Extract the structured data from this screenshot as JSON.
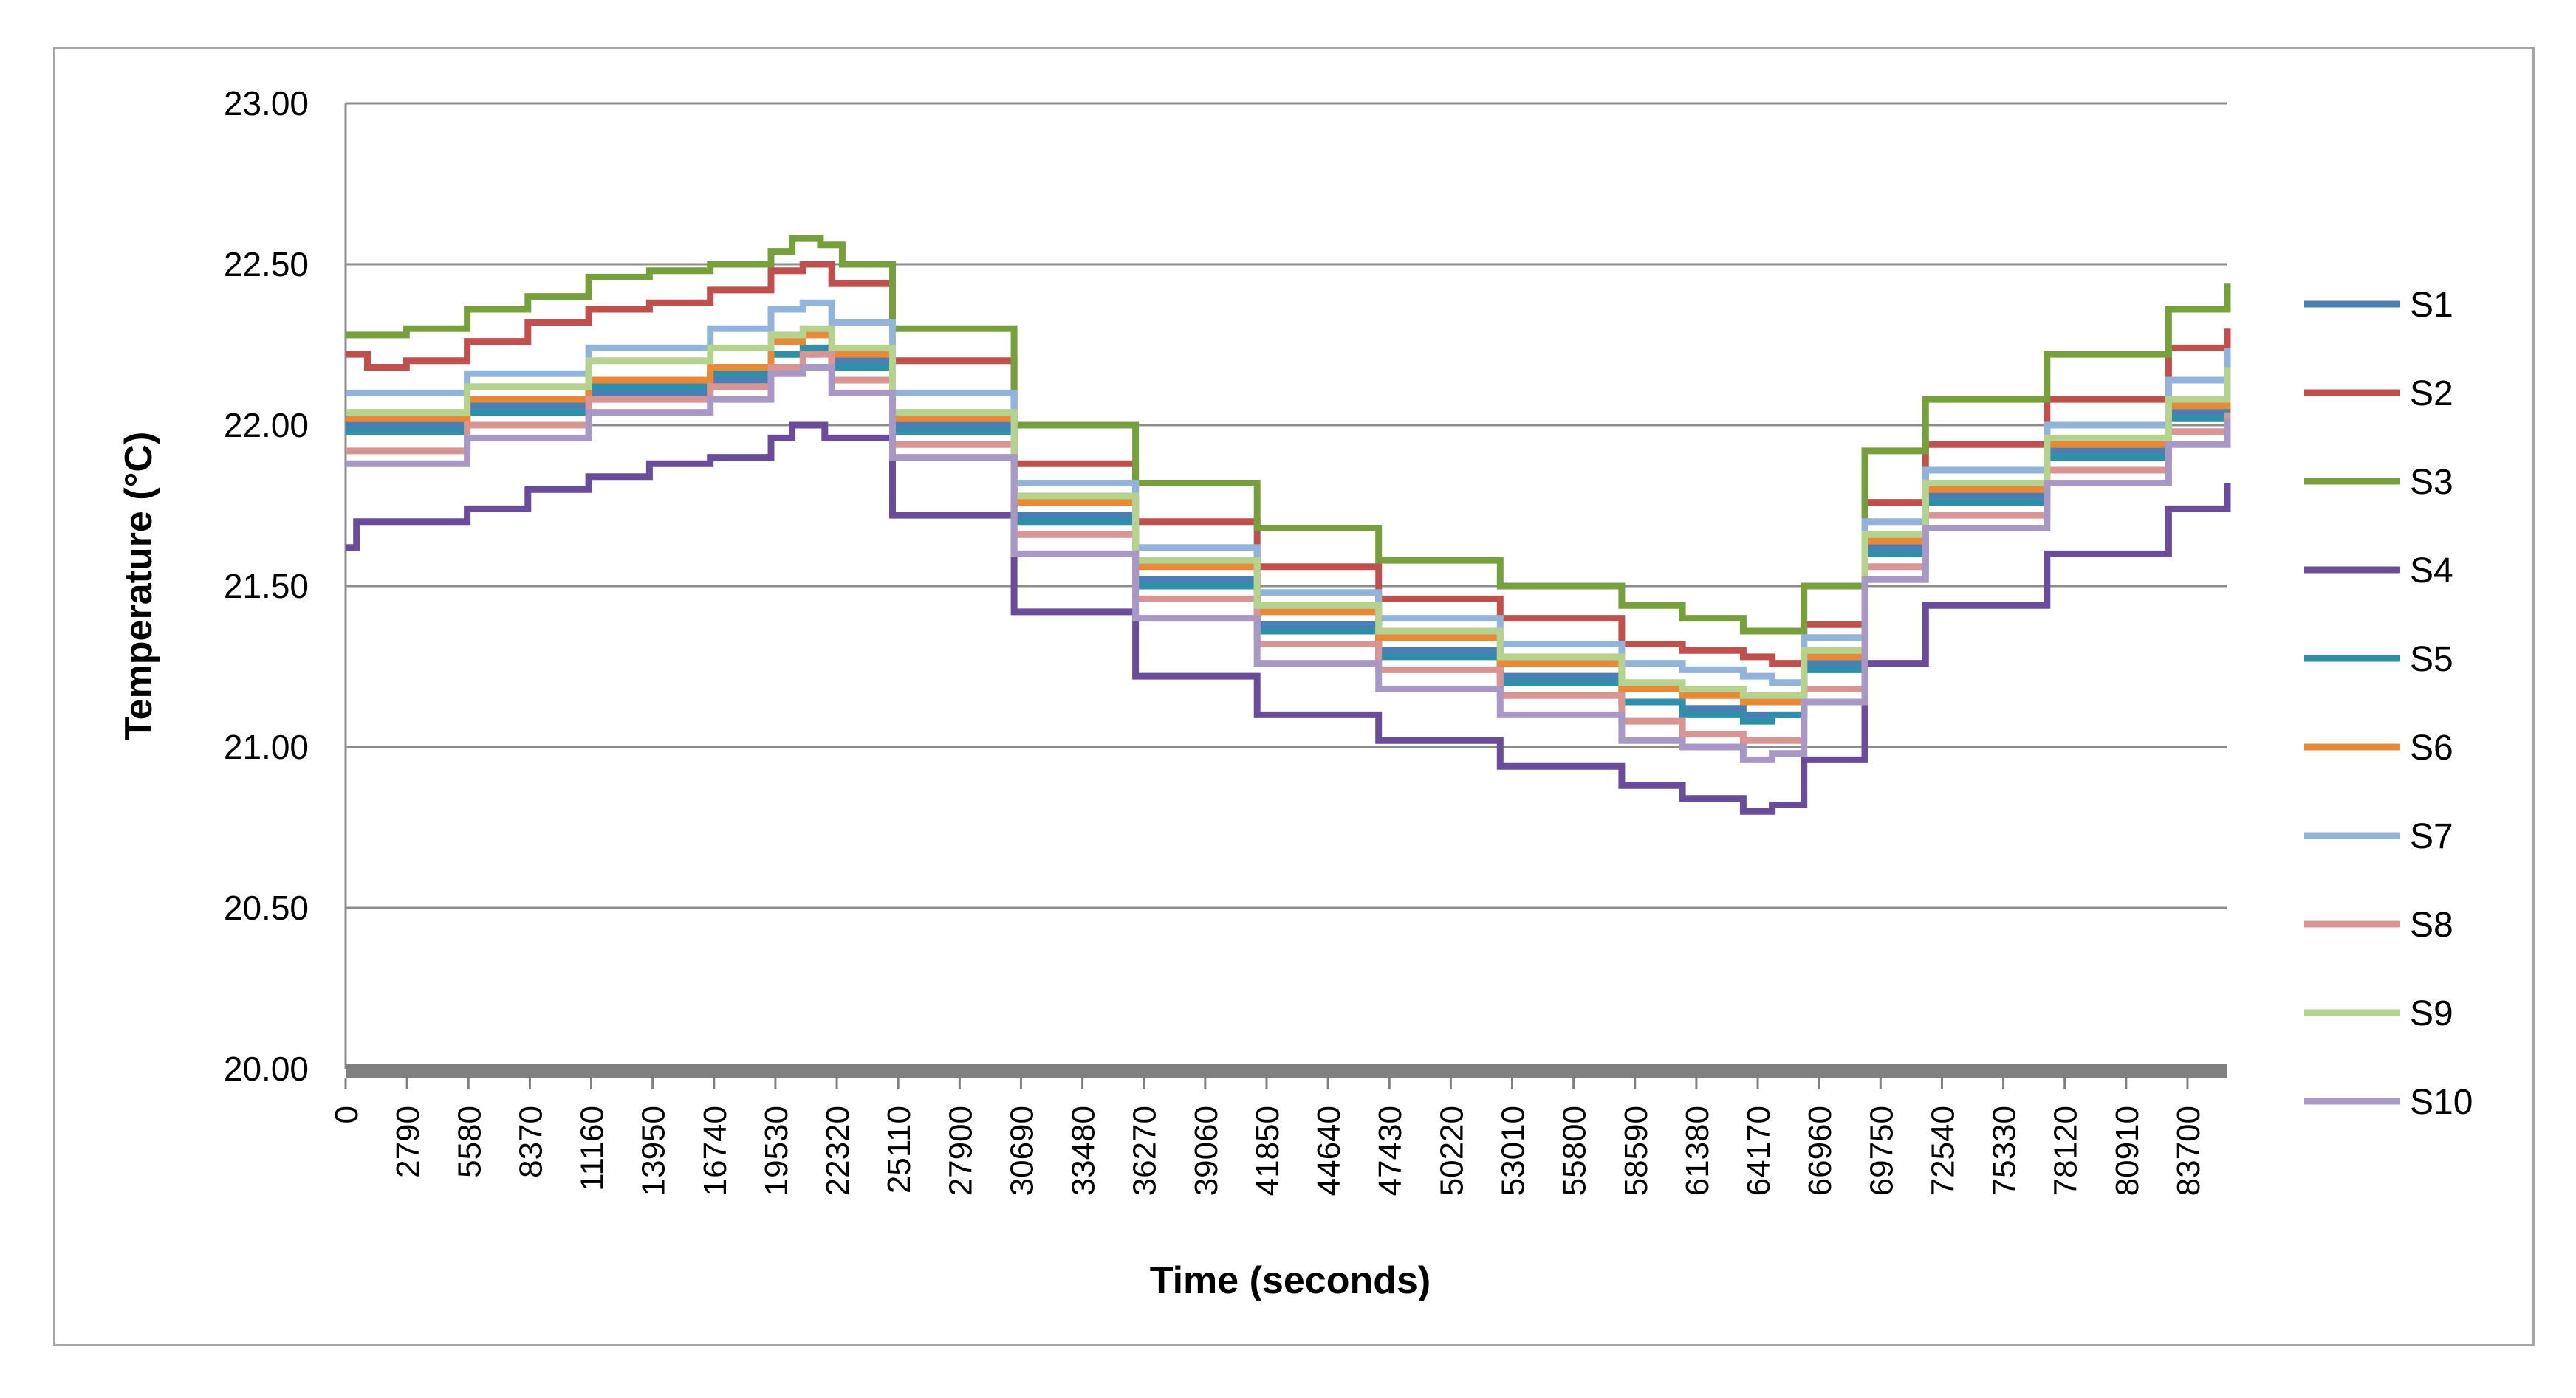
{
  "chart_data": {
    "type": "line",
    "title": "",
    "xlabel": "Time (seconds)",
    "ylabel": "Temperature (°C)",
    "ylim": [
      20.0,
      23.0
    ],
    "yticks": [
      "20.00",
      "20.50",
      "21.00",
      "21.50",
      "22.00",
      "22.50",
      "23.00"
    ],
    "xlim": [
      0,
      86400
    ],
    "xticks": [
      "0",
      "2790",
      "5580",
      "8370",
      "11160",
      "13950",
      "16740",
      "19530",
      "22320",
      "25110",
      "27900",
      "30690",
      "33480",
      "36270",
      "39060",
      "41850",
      "44640",
      "47430",
      "50220",
      "53010",
      "55800",
      "58590",
      "61380",
      "64170",
      "66960",
      "69750",
      "72540",
      "75330",
      "78120",
      "80910",
      "83700"
    ],
    "legend": "right",
    "series": [
      {
        "name": "S1",
        "color": "#4a7fb5",
        "x": [
          0,
          5580,
          11160,
          16740,
          19530,
          21500,
          22320,
          25110,
          30690,
          36270,
          41850,
          47430,
          53010,
          58590,
          61380,
          64170,
          65500,
          66960,
          69750,
          72540,
          78120,
          83700,
          86400
        ],
        "y": [
          22.0,
          22.06,
          22.1,
          22.14,
          22.22,
          22.24,
          22.2,
          22.0,
          21.72,
          21.52,
          21.38,
          21.3,
          21.22,
          21.14,
          21.12,
          21.1,
          21.1,
          21.26,
          21.62,
          21.78,
          21.92,
          22.04,
          22.12
        ]
      },
      {
        "name": "S2",
        "color": "#c0504d",
        "x": [
          0,
          1000,
          2790,
          5580,
          8370,
          11160,
          13950,
          16740,
          19530,
          21000,
          22320,
          25110,
          30690,
          36270,
          41850,
          47430,
          53010,
          58590,
          61380,
          64170,
          65500,
          66960,
          69750,
          72540,
          78120,
          83700,
          86400
        ],
        "y": [
          22.22,
          22.18,
          22.2,
          22.26,
          22.32,
          22.36,
          22.38,
          22.42,
          22.48,
          22.5,
          22.44,
          22.2,
          21.88,
          21.7,
          21.56,
          21.46,
          21.4,
          21.32,
          21.3,
          21.28,
          21.26,
          21.38,
          21.76,
          21.94,
          22.08,
          22.24,
          22.3
        ]
      },
      {
        "name": "S3",
        "color": "#77a03d",
        "x": [
          0,
          2790,
          5580,
          8370,
          11160,
          13950,
          16740,
          19530,
          20500,
          21800,
          22800,
          25110,
          30690,
          36270,
          41850,
          47430,
          53010,
          58590,
          61380,
          64170,
          65300,
          66960,
          69750,
          72540,
          78120,
          83700,
          86400
        ],
        "y": [
          22.28,
          22.3,
          22.36,
          22.4,
          22.46,
          22.48,
          22.5,
          22.54,
          22.58,
          22.56,
          22.5,
          22.3,
          22.0,
          21.82,
          21.68,
          21.58,
          21.5,
          21.44,
          21.4,
          21.36,
          21.36,
          21.5,
          21.92,
          22.08,
          22.22,
          22.36,
          22.44
        ]
      },
      {
        "name": "S4",
        "color": "#6a4d9a",
        "x": [
          0,
          500,
          2790,
          5580,
          8370,
          11160,
          13950,
          16740,
          19530,
          20500,
          22000,
          25110,
          30690,
          36270,
          41850,
          47430,
          53010,
          58590,
          61380,
          64170,
          65500,
          66960,
          69750,
          72540,
          78120,
          83700,
          86400
        ],
        "y": [
          21.62,
          21.7,
          21.7,
          21.74,
          21.8,
          21.84,
          21.88,
          21.9,
          21.96,
          22.0,
          21.96,
          21.72,
          21.42,
          21.22,
          21.1,
          21.02,
          20.94,
          20.88,
          20.84,
          20.8,
          20.82,
          20.96,
          21.26,
          21.44,
          21.6,
          21.74,
          21.82
        ]
      },
      {
        "name": "S5",
        "color": "#2f8ea8",
        "x": [
          0,
          5580,
          11160,
          16740,
          19530,
          21000,
          22320,
          25110,
          30690,
          36270,
          41850,
          47430,
          53010,
          58590,
          61380,
          64170,
          65500,
          66960,
          69750,
          72540,
          78120,
          83700,
          86400
        ],
        "y": [
          21.98,
          22.04,
          22.12,
          22.16,
          22.22,
          22.24,
          22.18,
          21.98,
          21.7,
          21.5,
          21.36,
          21.28,
          21.2,
          21.14,
          21.1,
          21.08,
          21.1,
          21.24,
          21.6,
          21.76,
          21.9,
          22.02,
          22.1
        ]
      },
      {
        "name": "S6",
        "color": "#e8893a",
        "x": [
          0,
          5580,
          11160,
          16740,
          19530,
          21000,
          22320,
          25110,
          30690,
          36270,
          41850,
          47430,
          53010,
          58590,
          61380,
          64170,
          65500,
          66960,
          69750,
          72540,
          78120,
          83700,
          86400
        ],
        "y": [
          22.02,
          22.08,
          22.14,
          22.18,
          22.26,
          22.28,
          22.22,
          22.02,
          21.76,
          21.56,
          21.42,
          21.34,
          21.26,
          21.18,
          21.16,
          21.14,
          21.14,
          21.28,
          21.64,
          21.8,
          21.94,
          22.06,
          22.14
        ]
      },
      {
        "name": "S7",
        "color": "#92b3da",
        "x": [
          0,
          5580,
          11160,
          16740,
          19530,
          21000,
          22320,
          25110,
          30690,
          36270,
          41850,
          47430,
          53010,
          58590,
          61380,
          64170,
          65500,
          66960,
          69750,
          72540,
          78120,
          83700,
          86400
        ],
        "y": [
          22.1,
          22.16,
          22.24,
          22.3,
          22.36,
          22.38,
          22.32,
          22.1,
          21.82,
          21.62,
          21.48,
          21.4,
          21.32,
          21.26,
          21.24,
          21.22,
          21.2,
          21.34,
          21.7,
          21.86,
          22.0,
          22.14,
          22.24
        ]
      },
      {
        "name": "S8",
        "color": "#d99594",
        "x": [
          0,
          5580,
          11160,
          16740,
          19530,
          21000,
          22320,
          25110,
          30690,
          36270,
          41850,
          47430,
          53010,
          58590,
          61380,
          64170,
          65500,
          66960,
          69750,
          72540,
          78120,
          83700,
          86400
        ],
        "y": [
          21.92,
          22.0,
          22.08,
          22.12,
          22.18,
          22.22,
          22.14,
          21.94,
          21.66,
          21.46,
          21.32,
          21.24,
          21.16,
          21.08,
          21.04,
          21.02,
          21.02,
          21.18,
          21.56,
          21.72,
          21.86,
          21.98,
          22.04
        ]
      },
      {
        "name": "S9",
        "color": "#b5d38f",
        "x": [
          0,
          5580,
          11160,
          16740,
          19530,
          21000,
          22320,
          25110,
          30690,
          36270,
          41850,
          47430,
          53010,
          58590,
          61380,
          64170,
          65500,
          66960,
          69750,
          72540,
          78120,
          83700,
          86400
        ],
        "y": [
          22.04,
          22.12,
          22.2,
          22.24,
          22.28,
          22.3,
          22.24,
          22.04,
          21.78,
          21.58,
          21.44,
          21.36,
          21.28,
          21.2,
          21.18,
          21.16,
          21.16,
          21.3,
          21.66,
          21.82,
          21.96,
          22.08,
          22.18
        ]
      },
      {
        "name": "S10",
        "color": "#a898c5",
        "x": [
          0,
          5580,
          11160,
          16740,
          19530,
          21000,
          22320,
          25110,
          30690,
          36270,
          41850,
          47430,
          53010,
          58590,
          61380,
          64170,
          65500,
          66960,
          69750,
          72540,
          78120,
          83700,
          86400
        ],
        "y": [
          21.88,
          21.96,
          22.04,
          22.08,
          22.16,
          22.18,
          22.1,
          21.9,
          21.6,
          21.4,
          21.26,
          21.18,
          21.1,
          21.02,
          21.0,
          20.96,
          20.98,
          21.14,
          21.52,
          21.68,
          21.82,
          21.94,
          22.02
        ]
      }
    ]
  }
}
